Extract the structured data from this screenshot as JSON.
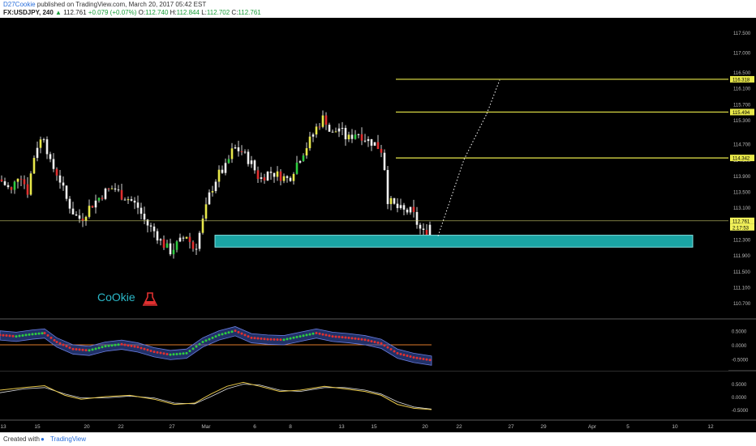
{
  "header": {
    "author": "D27Cookie",
    "published_text": " published on TradingView.com, March 20, 2017 05:42 EST",
    "symbol": "FX:USDJPY, 240",
    "last_price": "112.761",
    "change": "+0.079 (+0.07%)",
    "o_label": "O:",
    "o_value": "112.740",
    "h_label": "H:",
    "h_value": "112.844",
    "l_label": "L:",
    "l_value": "112.702",
    "c_label": "C:",
    "c_value": "112.761"
  },
  "watermark": "CoOkie",
  "colors": {
    "background": "#000000",
    "level_line": "#e8e84a",
    "zone_fill": "#1aa3a3",
    "watermark": "#2bb8c8",
    "flask": "#e03030",
    "bull": "#2ecc40",
    "bear": "#e03030",
    "stoch_k": "#e8c84a",
    "stoch_d": "#dddddd",
    "zero_line": "#e07a2a"
  },
  "price_axis": {
    "ticks": [
      "117.500",
      "117.000",
      "116.500",
      "116.100",
      "115.700",
      "115.300",
      "114.700",
      "114.300",
      "113.900",
      "113.500",
      "113.100",
      "112.700",
      "112.300",
      "111.900",
      "111.500",
      "111.100",
      "110.700"
    ],
    "tick_values": [
      117.5,
      117.0,
      116.5,
      116.1,
      115.7,
      115.3,
      114.7,
      114.3,
      113.9,
      113.5,
      113.1,
      112.7,
      112.3,
      111.9,
      111.5,
      111.1,
      110.7
    ],
    "badges": [
      {
        "label": "116.318",
        "value": 116.318
      },
      {
        "label": "115.494",
        "value": 115.494
      },
      {
        "label": "114.342",
        "value": 114.342
      },
      {
        "label": "112.761",
        "value": 112.761
      }
    ],
    "current_price": 112.761,
    "countdown": "2:17:53"
  },
  "indicator1_axis": [
    "0.5000",
    "0.0000",
    "-0.5000"
  ],
  "indicator2_axis": [
    "0.5000",
    "0.0000",
    "-0.5000"
  ],
  "time_axis": [
    "13",
    "15",
    "20",
    "22",
    "27",
    "Mar",
    "6",
    "8",
    "13",
    "15",
    "20",
    "22",
    "27",
    "29",
    "Apr",
    "5",
    "10",
    "12"
  ],
  "chart_data": {
    "type": "candlestick",
    "symbol": "FX:USDJPY",
    "interval": "240",
    "ylim": [
      110.5,
      117.7
    ],
    "levels": [
      116.318,
      115.494,
      114.342
    ],
    "demand_zone": [
      112.1,
      112.4
    ],
    "projection": [
      [
        112.38,
        112.38
      ],
      [
        113.65,
        114.3
      ],
      [
        114.6,
        115.45
      ],
      [
        115.5,
        116.3
      ]
    ],
    "price_path": [
      [
        0,
        113.8
      ],
      [
        14,
        113.5
      ],
      [
        24,
        114.0
      ],
      [
        34,
        113.5
      ],
      [
        44,
        114.6
      ],
      [
        54,
        114.9
      ],
      [
        62,
        114.2
      ],
      [
        72,
        113.9
      ],
      [
        82,
        113.3
      ],
      [
        92,
        112.9
      ],
      [
        100,
        112.8
      ],
      [
        110,
        113.1
      ],
      [
        120,
        113.3
      ],
      [
        130,
        113.5
      ],
      [
        140,
        113.6
      ],
      [
        150,
        113.4
      ],
      [
        160,
        113.3
      ],
      [
        170,
        113.1
      ],
      [
        180,
        112.7
      ],
      [
        190,
        112.5
      ],
      [
        200,
        112.2
      ],
      [
        210,
        112.0
      ],
      [
        220,
        112.2
      ],
      [
        230,
        112.4
      ],
      [
        240,
        112.0
      ],
      [
        248,
        112.6
      ],
      [
        258,
        113.4
      ],
      [
        268,
        113.9
      ],
      [
        278,
        114.1
      ],
      [
        288,
        114.6
      ],
      [
        298,
        114.5
      ],
      [
        310,
        114.2
      ],
      [
        320,
        113.8
      ],
      [
        332,
        114.0
      ],
      [
        344,
        113.9
      ],
      [
        356,
        113.8
      ],
      [
        368,
        114.3
      ],
      [
        380,
        114.7
      ],
      [
        390,
        115.1
      ],
      [
        400,
        115.4
      ],
      [
        408,
        114.9
      ],
      [
        418,
        115.1
      ],
      [
        428,
        114.8
      ],
      [
        440,
        115.0
      ],
      [
        452,
        114.8
      ],
      [
        462,
        114.7
      ],
      [
        472,
        114.5
      ],
      [
        478,
        113.3
      ],
      [
        488,
        113.1
      ],
      [
        498,
        113.0
      ],
      [
        508,
        113.0
      ],
      [
        516,
        112.6
      ],
      [
        524,
        112.4
      ],
      [
        532,
        112.76
      ]
    ],
    "indicator1": {
      "type": "oscillator",
      "ylim": [
        -0.75,
        0.75
      ],
      "values": [
        [
          0,
          0.35
        ],
        [
          20,
          0.3
        ],
        [
          40,
          0.38
        ],
        [
          55,
          0.42
        ],
        [
          70,
          0.1
        ],
        [
          90,
          -0.15
        ],
        [
          110,
          -0.2
        ],
        [
          130,
          -0.05
        ],
        [
          150,
          0.02
        ],
        [
          170,
          -0.08
        ],
        [
          190,
          -0.25
        ],
        [
          210,
          -0.35
        ],
        [
          230,
          -0.3
        ],
        [
          250,
          0.1
        ],
        [
          270,
          0.35
        ],
        [
          290,
          0.5
        ],
        [
          310,
          0.25
        ],
        [
          330,
          0.2
        ],
        [
          350,
          0.18
        ],
        [
          370,
          0.3
        ],
        [
          390,
          0.42
        ],
        [
          410,
          0.3
        ],
        [
          430,
          0.25
        ],
        [
          450,
          0.18
        ],
        [
          470,
          0.05
        ],
        [
          490,
          -0.3
        ],
        [
          510,
          -0.45
        ],
        [
          532,
          -0.55
        ]
      ]
    },
    "indicator2": {
      "type": "stochastic",
      "ylim": [
        -0.75,
        0.75
      ],
      "k": [
        [
          0,
          0.25
        ],
        [
          30,
          0.35
        ],
        [
          55,
          0.42
        ],
        [
          80,
          0.05
        ],
        [
          100,
          -0.1
        ],
        [
          130,
          0.0
        ],
        [
          160,
          0.05
        ],
        [
          190,
          -0.1
        ],
        [
          215,
          -0.3
        ],
        [
          240,
          -0.25
        ],
        [
          260,
          0.1
        ],
        [
          280,
          0.4
        ],
        [
          300,
          0.55
        ],
        [
          320,
          0.4
        ],
        [
          345,
          0.2
        ],
        [
          370,
          0.25
        ],
        [
          400,
          0.4
        ],
        [
          425,
          0.3
        ],
        [
          450,
          0.2
        ],
        [
          470,
          0.05
        ],
        [
          490,
          -0.3
        ],
        [
          510,
          -0.45
        ],
        [
          532,
          -0.5
        ]
      ],
      "d": [
        [
          0,
          0.15
        ],
        [
          30,
          0.3
        ],
        [
          55,
          0.35
        ],
        [
          80,
          0.1
        ],
        [
          100,
          -0.05
        ],
        [
          130,
          -0.05
        ],
        [
          160,
          0.02
        ],
        [
          190,
          -0.05
        ],
        [
          215,
          -0.25
        ],
        [
          240,
          -0.28
        ],
        [
          260,
          0.0
        ],
        [
          280,
          0.3
        ],
        [
          300,
          0.48
        ],
        [
          320,
          0.45
        ],
        [
          345,
          0.25
        ],
        [
          370,
          0.2
        ],
        [
          400,
          0.35
        ],
        [
          425,
          0.35
        ],
        [
          450,
          0.25
        ],
        [
          470,
          0.1
        ],
        [
          490,
          -0.2
        ],
        [
          510,
          -0.4
        ],
        [
          532,
          -0.48
        ]
      ]
    }
  },
  "footer": {
    "created_with": "Created with",
    "brand": "TradingView"
  }
}
